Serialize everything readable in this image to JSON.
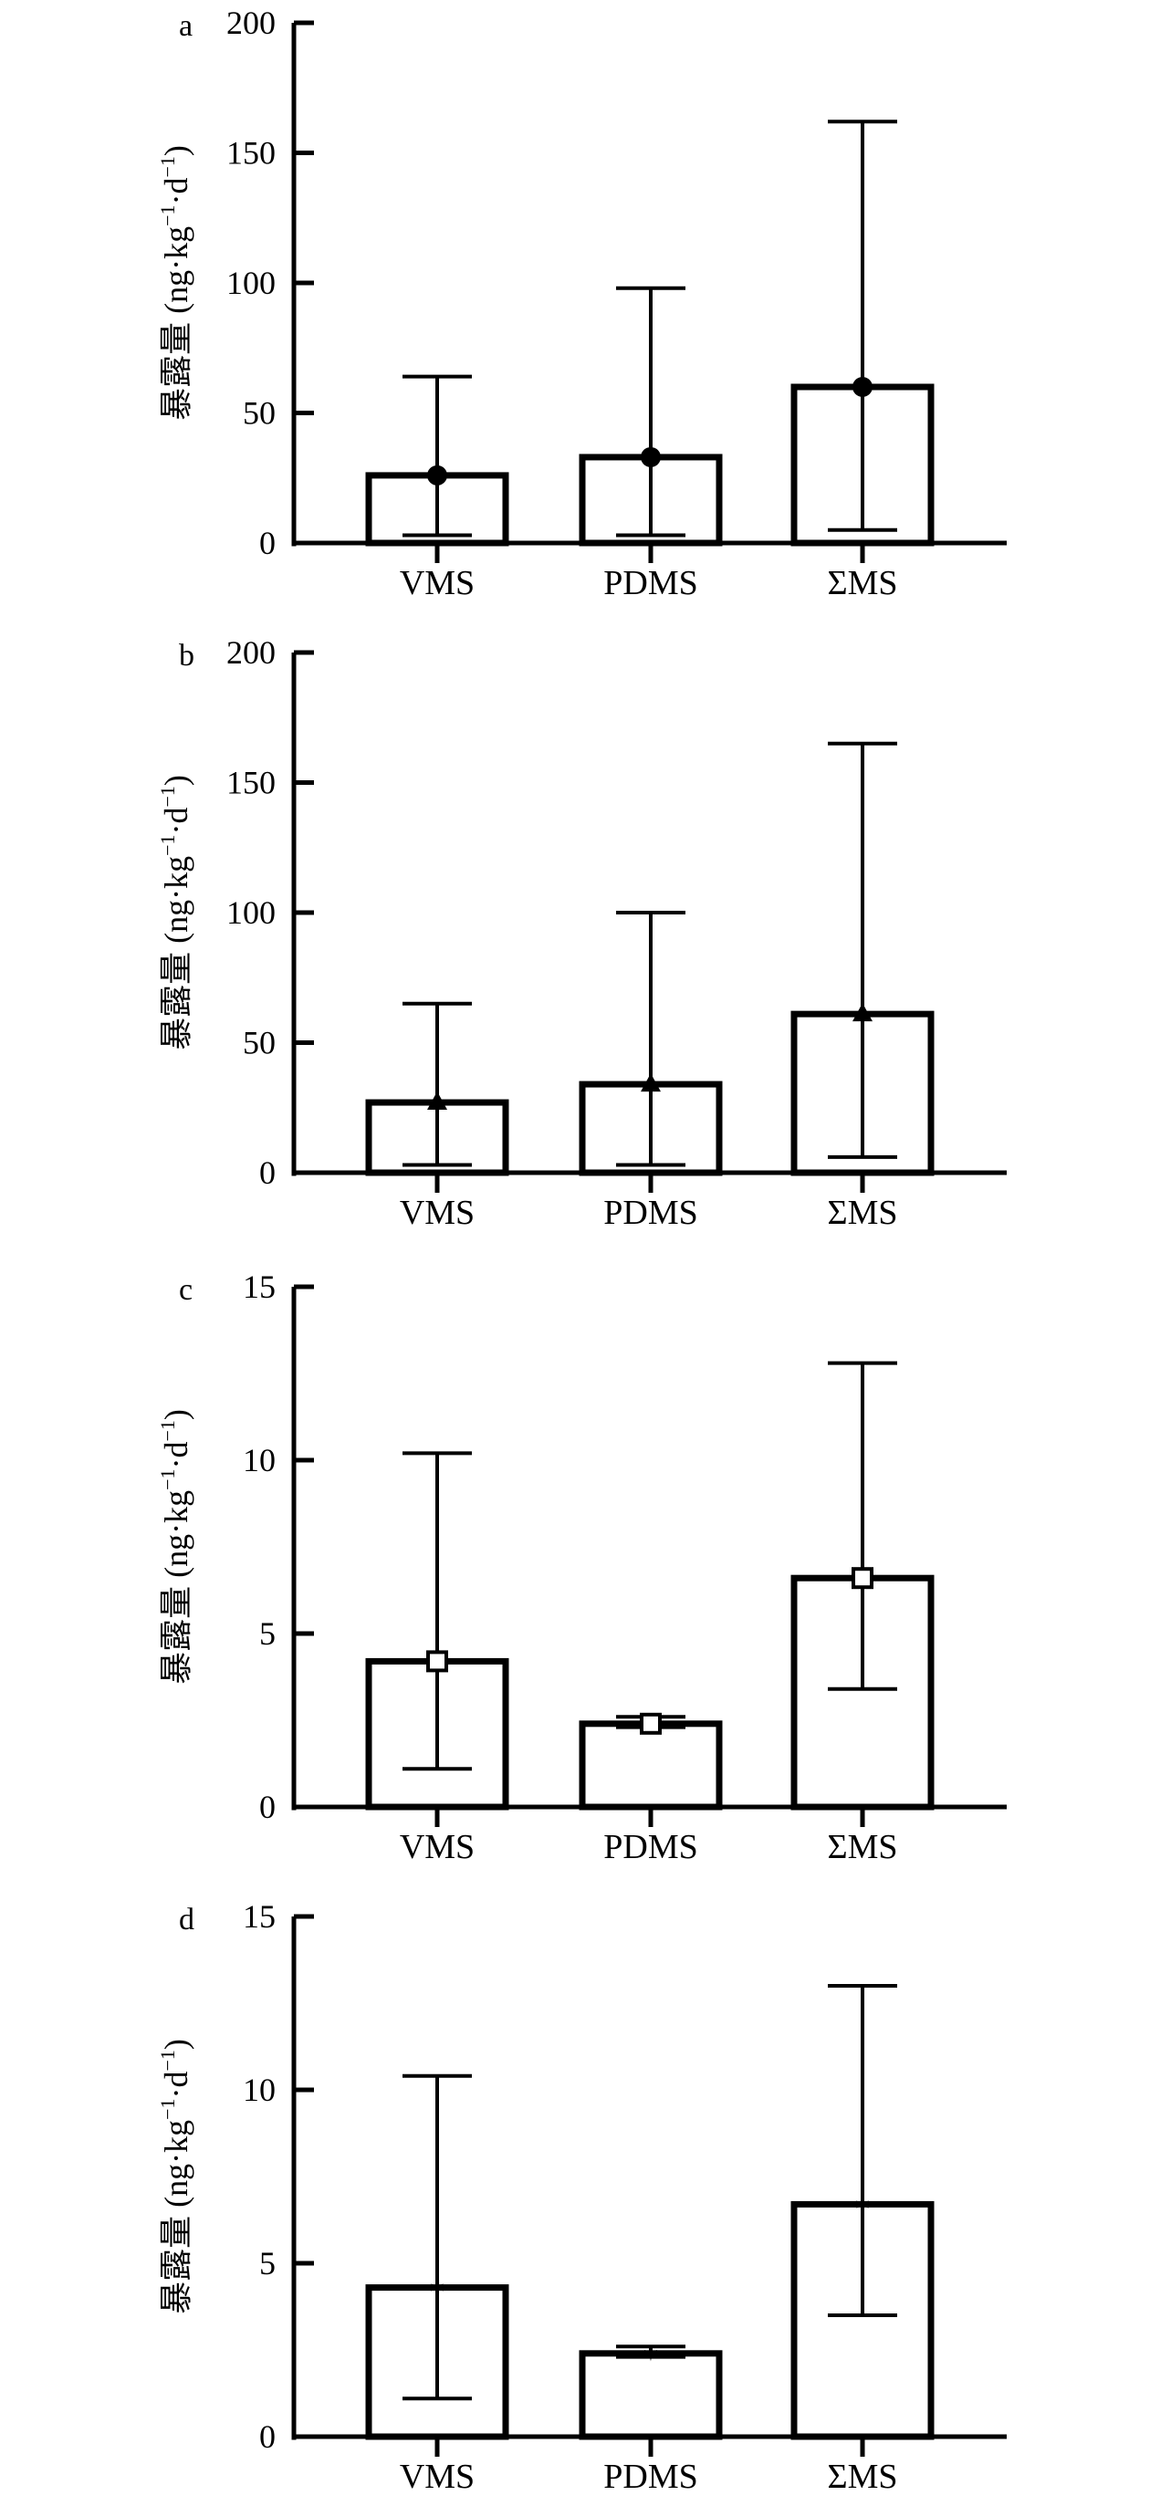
{
  "figure": {
    "panels_label": "bar charts with error bars",
    "ylabel_main": "暴露量",
    "ylabel_unit": "(ng·kg",
    "ylabel_unit_sup1": "−1",
    "ylabel_unit_mid": "·d",
    "ylabel_unit_sup2": "−1",
    "ylabel_unit_end": ")"
  },
  "chart_data": [
    {
      "type": "bar",
      "panel": "a",
      "categories": [
        "VMS",
        "PDMS",
        "ΣMS"
      ],
      "values": [
        26,
        33,
        60
      ],
      "error_low": [
        3,
        3,
        5
      ],
      "error_high": [
        64,
        98,
        162
      ],
      "marker": "circle",
      "ylabel": "暴露量 (ng·kg−1·d−1)",
      "ylim": [
        0,
        200
      ],
      "yticks": [
        0,
        50,
        100,
        150,
        200
      ]
    },
    {
      "type": "bar",
      "panel": "b",
      "categories": [
        "VMS",
        "PDMS",
        "ΣMS"
      ],
      "values": [
        27,
        34,
        61
      ],
      "error_low": [
        3,
        3,
        6
      ],
      "error_high": [
        65,
        100,
        165
      ],
      "marker": "triangle",
      "ylabel": "暴露量 (ng·kg−1·d−1)",
      "ylim": [
        0,
        200
      ],
      "yticks": [
        0,
        50,
        100,
        150,
        200
      ]
    },
    {
      "type": "bar",
      "panel": "c",
      "categories": [
        "VMS",
        "PDMS",
        "ΣMS"
      ],
      "values": [
        4.2,
        2.4,
        6.6
      ],
      "error_low": [
        1.1,
        2.3,
        3.4
      ],
      "error_high": [
        10.2,
        2.6,
        12.8
      ],
      "marker": "square",
      "ylabel": "暴露量 (ng·kg−1·d−1)",
      "ylim": [
        0,
        15
      ],
      "yticks": [
        0,
        5,
        10,
        15
      ]
    },
    {
      "type": "bar",
      "panel": "d",
      "categories": [
        "VMS",
        "PDMS",
        "ΣMS"
      ],
      "values": [
        4.3,
        2.4,
        6.7
      ],
      "error_low": [
        1.1,
        2.3,
        3.5
      ],
      "error_high": [
        10.4,
        2.6,
        13.0
      ],
      "marker": "star",
      "ylabel": "暴露量 (ng·kg−1·d−1)",
      "ylim": [
        0,
        15
      ],
      "yticks": [
        0,
        5,
        10,
        15
      ]
    }
  ]
}
